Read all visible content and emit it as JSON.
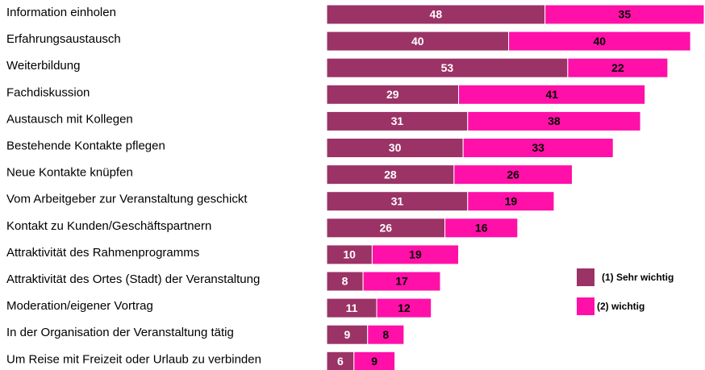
{
  "chart_data": {
    "type": "bar",
    "orientation": "horizontal",
    "stacked": true,
    "categories": [
      "Information einholen",
      "Erfahrungsaustausch",
      "Weiterbildung",
      "Fachdiskussion",
      "Austausch mit Kollegen",
      "Bestehende Kontakte pflegen",
      "Neue Kontakte knüpfen",
      "Vom Arbeitgeber zur Veranstaltung geschickt",
      "Kontakt zu Kunden/Geschäftspartnern",
      "Attraktivität des Rahmenprogramms",
      "Attraktivität des Ortes (Stadt) der  Veranstaltung",
      "Moderation/eigener Vortrag",
      "In der Organisation der Veranstaltung tätig",
      "Um Reise mit Freizeit oder Urlaub zu verbinden"
    ],
    "series": [
      {
        "name": "(1) Sehr wichtig",
        "color": "#9b3366",
        "values": [
          48,
          40,
          53,
          29,
          31,
          30,
          28,
          31,
          26,
          10,
          8,
          11,
          9,
          6
        ]
      },
      {
        "name": "(2) wichtig",
        "color": "#ff10a8",
        "values": [
          35,
          40,
          22,
          41,
          38,
          33,
          26,
          19,
          16,
          19,
          17,
          12,
          8,
          9
        ]
      }
    ]
  }
}
